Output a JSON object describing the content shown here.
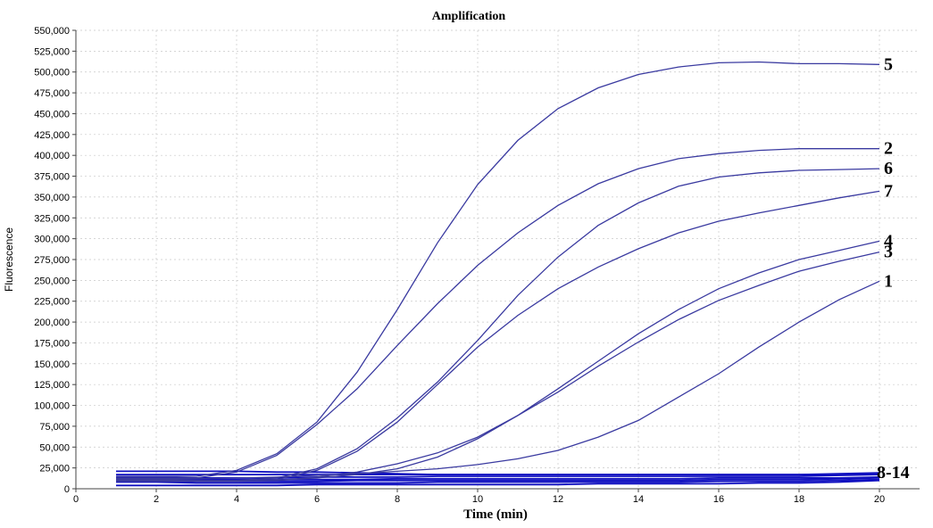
{
  "chart_data": {
    "type": "line",
    "title": "Amplification",
    "xlabel": "Time (min)",
    "ylabel": "Fluorescence",
    "xlim": [
      0,
      21
    ],
    "ylim": [
      0,
      550000
    ],
    "xticks": [
      0,
      2,
      4,
      6,
      8,
      10,
      12,
      14,
      16,
      18,
      20
    ],
    "yticks": [
      0,
      25000,
      50000,
      75000,
      100000,
      125000,
      150000,
      175000,
      200000,
      225000,
      250000,
      275000,
      300000,
      325000,
      350000,
      375000,
      400000,
      425000,
      450000,
      475000,
      500000,
      525000,
      550000
    ],
    "grid": true,
    "x": [
      1,
      2,
      3,
      4,
      5,
      6,
      7,
      8,
      9,
      10,
      11,
      12,
      13,
      14,
      15,
      16,
      17,
      18,
      19,
      20
    ],
    "line_color": "#3a3aa0",
    "flat_color": "#1010c0",
    "series": [
      {
        "name": "5",
        "values": [
          15000,
          15000,
          15000,
          22000,
          42000,
          80000,
          140000,
          215000,
          295000,
          365000,
          418000,
          456000,
          481000,
          497000,
          506000,
          511000,
          512000,
          510000,
          510000,
          509000
        ]
      },
      {
        "name": "2",
        "values": [
          13000,
          13000,
          13000,
          20000,
          40000,
          77000,
          120000,
          172000,
          222000,
          268000,
          307000,
          340000,
          366000,
          384000,
          396000,
          402000,
          406000,
          408000,
          408000,
          408000
        ]
      },
      {
        "name": "6",
        "values": [
          11000,
          11000,
          10000,
          10000,
          13000,
          24000,
          48000,
          85000,
          128000,
          178000,
          232000,
          278000,
          316000,
          343000,
          363000,
          374000,
          379000,
          382000,
          383000,
          384000
        ]
      },
      {
        "name": "7",
        "values": [
          10000,
          10000,
          9000,
          9000,
          11000,
          22000,
          45000,
          80000,
          125000,
          170000,
          208000,
          240000,
          266000,
          288000,
          307000,
          321000,
          331000,
          340000,
          349000,
          357000
        ]
      },
      {
        "name": "4",
        "values": [
          9000,
          9000,
          9000,
          9000,
          10000,
          14000,
          20000,
          30000,
          43000,
          62000,
          88000,
          120000,
          153000,
          186000,
          215000,
          240000,
          259000,
          275000,
          286000,
          297000
        ]
      },
      {
        "name": "3",
        "values": [
          9000,
          9000,
          9000,
          9000,
          10000,
          13000,
          17000,
          24000,
          38000,
          60000,
          88000,
          116000,
          147000,
          176000,
          203000,
          226000,
          244000,
          261000,
          273000,
          284000
        ]
      },
      {
        "name": "1",
        "values": [
          12000,
          12000,
          12000,
          13000,
          14000,
          16000,
          18000,
          21000,
          24000,
          29000,
          36000,
          46000,
          62000,
          82000,
          110000,
          138000,
          170000,
          200000,
          227000,
          249000
        ]
      }
    ],
    "flat_series": {
      "label": "8-14",
      "lines": [
        [
          21000,
          21000,
          21000,
          21000,
          20000,
          20000,
          19000,
          18000,
          17000,
          17000,
          17000,
          17000,
          17000,
          17000,
          17000,
          17000,
          17000,
          17000,
          18000,
          19000
        ],
        [
          17000,
          17000,
          17000,
          17000,
          17000,
          17000,
          17000,
          17000,
          17000,
          17000,
          17000,
          17000,
          17000,
          17000,
          17000,
          17000,
          17000,
          17000,
          17000,
          18000
        ],
        [
          14000,
          14000,
          13000,
          13000,
          13000,
          14000,
          14000,
          14000,
          15000,
          15000,
          15000,
          15000,
          15000,
          15000,
          15000,
          15000,
          15000,
          15000,
          16000,
          17000
        ],
        [
          12000,
          12000,
          11000,
          11000,
          11000,
          11000,
          11000,
          12000,
          12000,
          12000,
          12000,
          12000,
          12000,
          12000,
          12000,
          13000,
          13000,
          13000,
          13000,
          14000
        ],
        [
          10000,
          10000,
          9000,
          9000,
          9000,
          9000,
          10000,
          10000,
          10000,
          10000,
          10000,
          10000,
          10000,
          10000,
          10000,
          11000,
          11000,
          11000,
          12000,
          13000
        ],
        [
          8000,
          8000,
          7000,
          7000,
          7000,
          7000,
          7000,
          7000,
          8000,
          8000,
          8000,
          8000,
          8000,
          8000,
          8000,
          9000,
          9000,
          9000,
          10000,
          11000
        ],
        [
          4000,
          4000,
          4000,
          4000,
          4000,
          5000,
          5000,
          5000,
          5000,
          5000,
          5000,
          5000,
          6000,
          6000,
          6000,
          6000,
          7000,
          7000,
          8000,
          10000
        ]
      ]
    }
  }
}
